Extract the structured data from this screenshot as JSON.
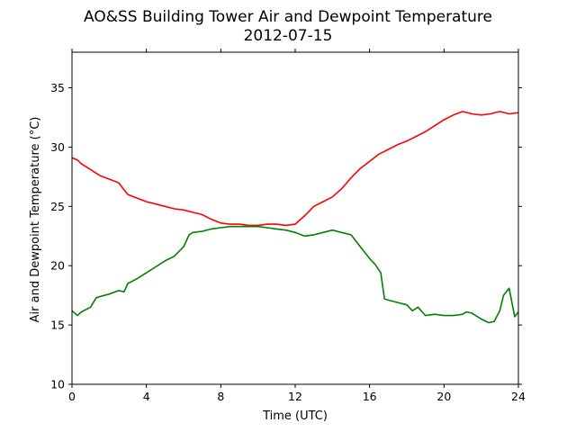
{
  "chart_data": {
    "type": "line",
    "title": "AO&SS Building Tower Air and Dewpoint Temperature",
    "subtitle": "2012-07-15",
    "xlabel": "Time (UTC)",
    "ylabel": "Air and Dewpoint Temperature (°C)",
    "xlim": [
      0,
      24
    ],
    "ylim": [
      10,
      38
    ],
    "xticks": [
      0,
      4,
      8,
      12,
      16,
      20,
      24
    ],
    "yticks": [
      10,
      15,
      20,
      25,
      30,
      35
    ],
    "grid": false,
    "series": [
      {
        "color": "#ff0000",
        "x": [
          0,
          0.3,
          0.5,
          0.8,
          1.5,
          2,
          2.5,
          2.8,
          3,
          3.5,
          4,
          4.5,
          5,
          5.5,
          6,
          6.5,
          7,
          7.5,
          8,
          8.5,
          9,
          9.5,
          10,
          10.5,
          11,
          11.5,
          12,
          12.5,
          13,
          13.5,
          14,
          14.5,
          15,
          15.5,
          16,
          16.5,
          17,
          17.5,
          18,
          18.5,
          19,
          19.5,
          20,
          20.5,
          21,
          21.5,
          22,
          22.5,
          23,
          23.5,
          24
        ],
        "y": [
          29.1,
          28.9,
          28.6,
          28.3,
          27.6,
          27.3,
          27.0,
          26.4,
          26.0,
          25.7,
          25.4,
          25.2,
          25.0,
          24.8,
          24.7,
          24.5,
          24.3,
          23.9,
          23.6,
          23.5,
          23.5,
          23.4,
          23.4,
          23.5,
          23.5,
          23.4,
          23.5,
          24.2,
          25.0,
          25.4,
          25.8,
          26.5,
          27.4,
          28.2,
          28.8,
          29.4,
          29.8,
          30.2,
          30.5,
          30.9,
          31.3,
          31.8,
          32.3,
          32.7,
          33.0,
          32.8,
          32.7,
          32.8,
          33.0,
          32.8,
          32.9
        ]
      },
      {
        "color": "#008000",
        "x": [
          0,
          0.3,
          0.5,
          1,
          1.3,
          1.5,
          2,
          2.5,
          2.8,
          3,
          3.5,
          4,
          4.5,
          5,
          5.5,
          6,
          6.3,
          6.5,
          7,
          7.5,
          8,
          8.5,
          9,
          9.5,
          10,
          10.5,
          11,
          11.5,
          12,
          12.5,
          13,
          13.5,
          14,
          14.5,
          15,
          15.5,
          16,
          16.3,
          16.6,
          16.8,
          17,
          17.5,
          18,
          18.3,
          18.6,
          19,
          19.5,
          20,
          20.5,
          21,
          21.2,
          21.5,
          22,
          22.4,
          22.7,
          23,
          23.2,
          23.5,
          23.8,
          24
        ],
        "y": [
          16.2,
          15.8,
          16.1,
          16.5,
          17.3,
          17.4,
          17.6,
          17.9,
          17.8,
          18.5,
          18.9,
          19.4,
          19.9,
          20.4,
          20.8,
          21.6,
          22.6,
          22.8,
          22.9,
          23.1,
          23.2,
          23.3,
          23.3,
          23.3,
          23.3,
          23.2,
          23.1,
          23.0,
          22.8,
          22.5,
          22.6,
          22.8,
          23.0,
          22.8,
          22.6,
          21.6,
          20.6,
          20.1,
          19.4,
          17.2,
          17.1,
          16.9,
          16.7,
          16.2,
          16.5,
          15.8,
          15.9,
          15.8,
          15.8,
          15.9,
          16.1,
          16.0,
          15.5,
          15.2,
          15.3,
          16.2,
          17.5,
          18.1,
          15.7,
          16.1
        ]
      }
    ]
  }
}
